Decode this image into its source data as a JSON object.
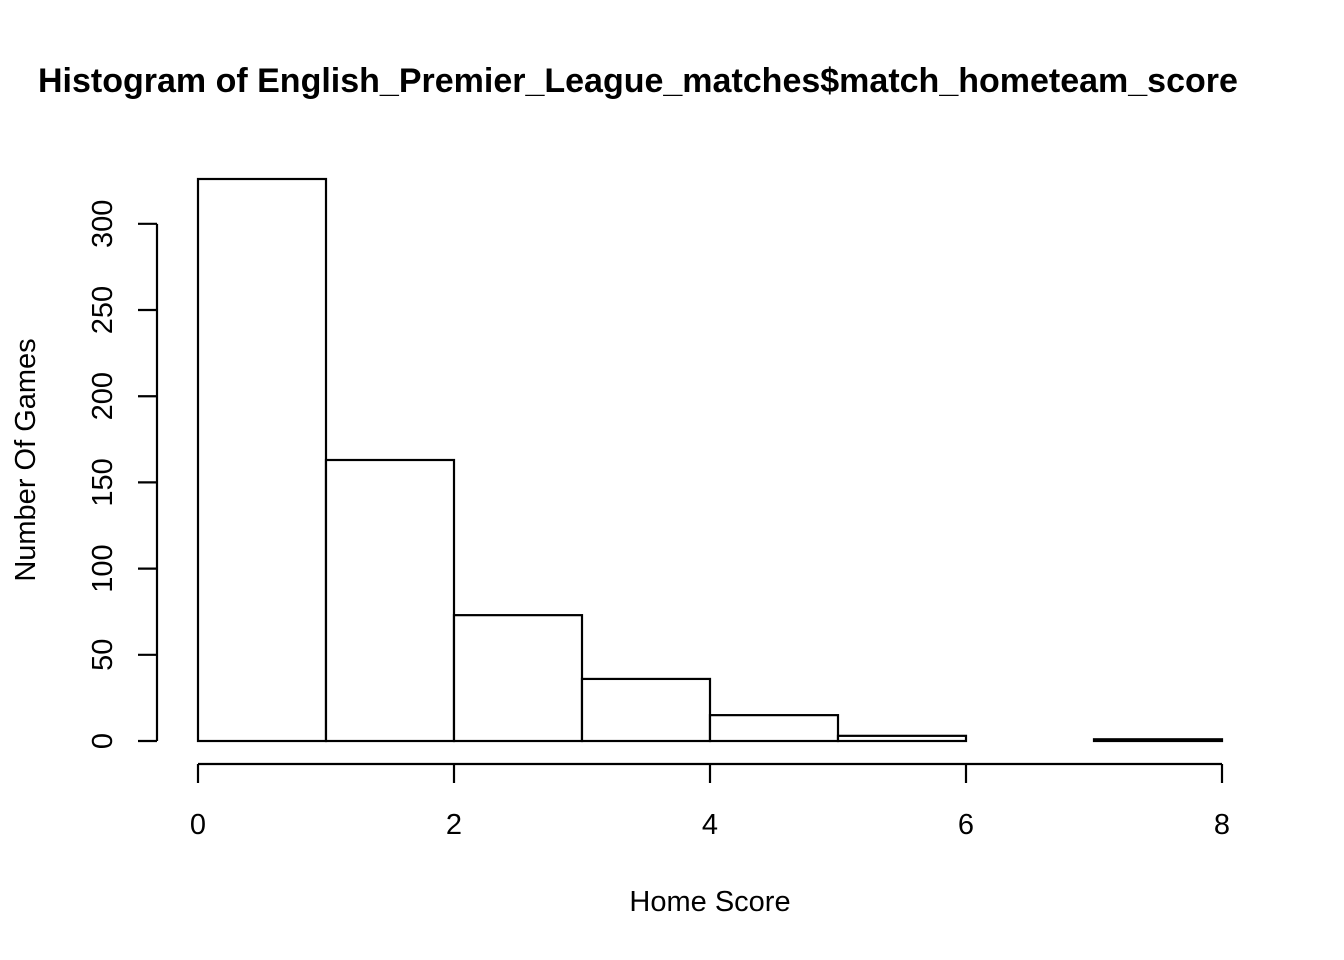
{
  "chart_data": {
    "type": "bar",
    "title": "Histogram of English_Premier_League_matches$match_hometeam_score",
    "xlabel": "Home Score",
    "ylabel": "Number Of Games",
    "bins": [
      {
        "start": 0,
        "end": 1,
        "count": 326
      },
      {
        "start": 1,
        "end": 2,
        "count": 163
      },
      {
        "start": 2,
        "end": 3,
        "count": 73
      },
      {
        "start": 3,
        "end": 4,
        "count": 36
      },
      {
        "start": 4,
        "end": 5,
        "count": 15
      },
      {
        "start": 5,
        "end": 6,
        "count": 3
      },
      {
        "start": 6,
        "end": 7,
        "count": 0
      },
      {
        "start": 7,
        "end": 8,
        "count": 1
      }
    ],
    "xlim": [
      0,
      8
    ],
    "ylim": [
      0,
      326
    ],
    "x_ticks": [
      0,
      2,
      4,
      6,
      8
    ],
    "y_ticks": [
      0,
      50,
      100,
      150,
      200,
      250,
      300
    ],
    "grid": false,
    "colors": {
      "bar_fill": "#ffffff",
      "bar_stroke": "#000000"
    }
  }
}
